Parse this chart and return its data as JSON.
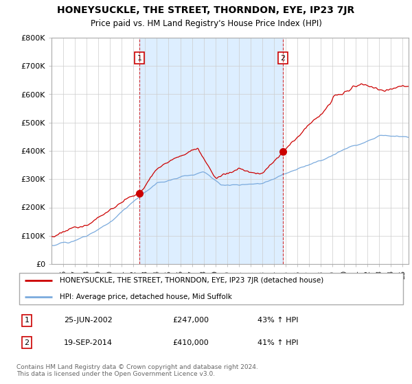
{
  "title": "HONEYSUCKLE, THE STREET, THORNDON, EYE, IP23 7JR",
  "subtitle": "Price paid vs. HM Land Registry's House Price Index (HPI)",
  "legend_entry1": "HONEYSUCKLE, THE STREET, THORNDON, EYE, IP23 7JR (detached house)",
  "legend_entry2": "HPI: Average price, detached house, Mid Suffolk",
  "sale1_date": "25-JUN-2002",
  "sale1_price": "£247,000",
  "sale1_hpi": "43% ↑ HPI",
  "sale2_date": "19-SEP-2014",
  "sale2_price": "£410,000",
  "sale2_hpi": "41% ↑ HPI",
  "footer": "Contains HM Land Registry data © Crown copyright and database right 2024.\nThis data is licensed under the Open Government Licence v3.0.",
  "property_color": "#cc0000",
  "hpi_color": "#7aaadd",
  "shade_color": "#ddeeff",
  "sale1_year": 2002.5,
  "sale2_year": 2014.75,
  "ylim_max": 800000,
  "xlim_start": 1995.0,
  "xlim_end": 2025.5
}
